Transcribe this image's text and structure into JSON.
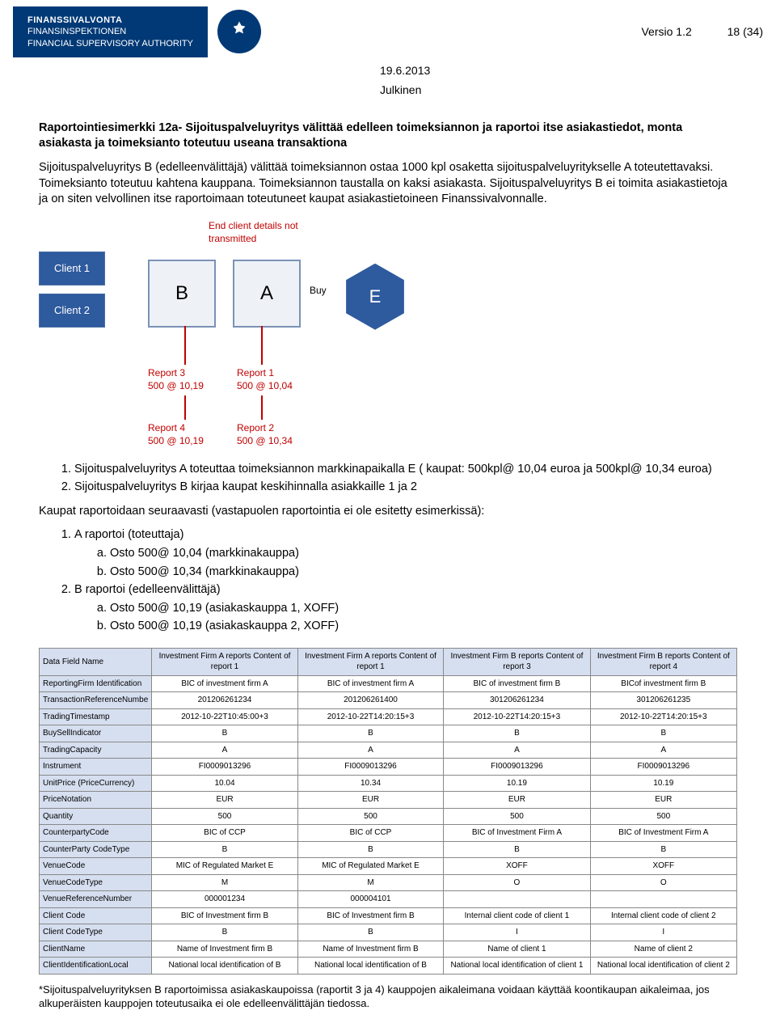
{
  "header": {
    "org_line1": "FINANSSIVALVONTA",
    "org_line2": "FINANSINSPEKTIONEN",
    "org_line3": "FINANCIAL SUPERVISORY AUTHORITY",
    "version_label": "Versio 1.2",
    "page_label": "18 (34)",
    "date": "19.6.2013",
    "classification": "Julkinen"
  },
  "section": {
    "title": "Raportointiesimerkki 12a- Sijoituspalveluyritys välittää edelleen toimeksiannon ja raportoi itse asiakastiedot, monta asiakasta ja toimeksianto toteutuu useana transaktiona",
    "para1": "Sijoituspalveluyritys B (edelleenvälittäjä) välittää toimeksiannon ostaa 1000 kpl osaketta sijoituspalveluyritykselle A toteutettavaksi. Toimeksianto toteutuu kahtena kauppana. Toimeksiannon taustalla on kaksi asiakasta. Sijoituspalveluyritys B ei toimita asiakastietoja ja on siten velvollinen itse raportoimaan toteutuneet kaupat asiakastietoineen Finanssivalvonnalle."
  },
  "diagram": {
    "client1": "Client 1",
    "client2": "Client 2",
    "firmB": "B",
    "firmA": "A",
    "buy": "Buy",
    "marketE": "E",
    "no_transmit": "End client details not transmitted",
    "r1": "Report 1",
    "r1v": "500 @ 10,04",
    "r2": "Report 2",
    "r2v": "500 @ 10,34",
    "r3": "Report 3",
    "r3v": "500 @ 10,19",
    "r4": "Report 4",
    "r4v": "500 @ 10,19"
  },
  "list1": {
    "i1": "Sijoituspalveluyritys A toteuttaa toimeksiannon markkinapaikalla E ( kaupat: 500kpl@ 10,04 euroa  ja 500kpl@ 10,34 euroa)",
    "i2": "Sijoituspalveluyritys B kirjaa kaupat keskihinnalla asiakkaille 1 ja 2"
  },
  "para2": "Kaupat raportoidaan seuraavasti (vastapuolen raportointia ei ole esitetty esimerkissä):",
  "list2": {
    "i1": "A raportoi (toteuttaja)",
    "i1a": "Osto 500@ 10,04 (markkinakauppa)",
    "i1b": "Osto 500@ 10,34 (markkinakauppa)",
    "i2": "B raportoi (edelleenvälittäjä)",
    "i2a": "Osto 500@ 10,19 (asiakaskauppa 1, XOFF)",
    "i2b": "Osto 500@ 10,19 (asiakaskauppa 2, XOFF)"
  },
  "table": {
    "headers": [
      "Data Field Name",
      "Investment Firm A reports Content of report 1",
      "Investment Firm A reports Content of report 1",
      "Investment Firm B reports Content of report 3",
      "Investment Firm B reports Content of report 4"
    ],
    "rows": [
      [
        "ReportingFirm Identification",
        "BIC of investment firm A",
        "BIC of investment firm A",
        "BIC of investment firm B",
        "BICof investment firm B"
      ],
      [
        "TransactionReferenceNumbe",
        "201206261234",
        "201206261400",
        "301206261234",
        "301206261235"
      ],
      [
        "TradingTimestamp",
        "2012-10-22T10:45:00+3",
        "2012-10-22T14:20:15+3",
        "2012-10-22T14:20:15+3",
        "2012-10-22T14:20:15+3"
      ],
      [
        "BuySellIndicator",
        "B",
        "B",
        "B",
        "B"
      ],
      [
        "TradingCapacity",
        "A",
        "A",
        "A",
        "A"
      ],
      [
        "Instrument",
        "FI0009013296",
        "FI0009013296",
        "FI0009013296",
        "FI0009013296"
      ],
      [
        "UnitPrice (PriceCurrency)",
        "10.04",
        "10.34",
        "10.19",
        "10.19"
      ],
      [
        "PriceNotation",
        "EUR",
        "EUR",
        "EUR",
        "EUR"
      ],
      [
        "Quantity",
        "500",
        "500",
        "500",
        "500"
      ],
      [
        "CounterpartyCode",
        "BIC of CCP",
        "BIC of CCP",
        "BIC of Investment Firm A",
        "BIC of Investment Firm A"
      ],
      [
        "CounterParty CodeType",
        "B",
        "B",
        "B",
        "B"
      ],
      [
        "VenueCode",
        "MIC of Regulated Market E",
        "MIC of Regulated Market E",
        "XOFF",
        "XOFF"
      ],
      [
        "VenueCodeType",
        "M",
        "M",
        "O",
        "O"
      ],
      [
        "VenueReferenceNumber",
        "000001234",
        "000004101",
        "",
        ""
      ],
      [
        "Client Code",
        "BIC of Investment firm B",
        "BIC of Investment firm B",
        "Internal client code of client 1",
        "Internal client code of client 2"
      ],
      [
        "Client CodeType",
        "B",
        "B",
        "I",
        "I"
      ],
      [
        "ClientName",
        "Name of Investment firm B",
        "Name of Investment firm B",
        "Name of client 1",
        "Name of client 2"
      ],
      [
        "ClientIdentificationLocal",
        "National local identification of B",
        "National local identification of B",
        "National local identification of client 1",
        "National local identification of client 2"
      ]
    ]
  },
  "footnote": "*Sijoituspalveluyrityksen B raportoimissa asiakaskaupoissa (raportit 3 ja 4) kauppojen aikaleimana voidaan käyttää koontikaupan aikaleimaa, jos alkuperäisten kauppojen toteutusaika ei ole edelleenvälittäjän tiedossa."
}
